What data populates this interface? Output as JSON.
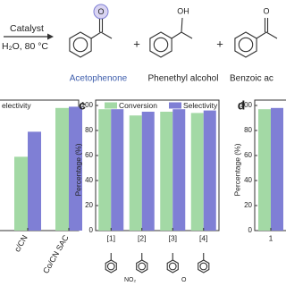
{
  "scheme": {
    "conditions": [
      "Catalyst",
      "H₂O, 80 °C"
    ],
    "products": [
      "Acetophenone",
      "Phenethyl alcohol",
      "Benzoic ac"
    ],
    "plus": "+",
    "atoms": [
      "O",
      "OH",
      "O"
    ]
  },
  "chart_data": [
    {
      "type": "bar",
      "categories": [
        "c/CN",
        "Co/CN SAC"
      ],
      "series": [
        {
          "color": "#a3d9a5",
          "values": [
            59,
            98
          ]
        },
        {
          "name": "electivity",
          "color": "#7f7fd5",
          "values": [
            79,
            99
          ]
        }
      ],
      "ylim": [
        0,
        100
      ]
    },
    {
      "type": "bar",
      "panel": "c",
      "ylabel": "Percentage (%)",
      "categories": [
        "[1]",
        "[2]",
        "[3]",
        "[4]"
      ],
      "series": [
        {
          "name": "Conversion",
          "color": "#a3d9a5",
          "values": [
            97,
            92,
            95,
            94
          ]
        },
        {
          "name": "Selectivity",
          "color": "#7f7fd5",
          "values": [
            97,
            95,
            97,
            96
          ]
        }
      ],
      "ylim": [
        0,
        100
      ],
      "yticks": [
        0,
        20,
        40,
        60,
        80,
        100
      ],
      "substituents": [
        "NO₂",
        "O"
      ]
    },
    {
      "type": "bar",
      "panel": "d",
      "ylabel": "Percentage (%)",
      "categories": [
        "1"
      ],
      "series": [
        {
          "color": "#a3d9a5",
          "values": [
            97
          ]
        },
        {
          "color": "#7f7fd5",
          "values": [
            98
          ]
        }
      ],
      "ylim": [
        0,
        100
      ],
      "yticks": [
        0,
        20,
        40,
        60,
        80,
        100
      ]
    }
  ]
}
